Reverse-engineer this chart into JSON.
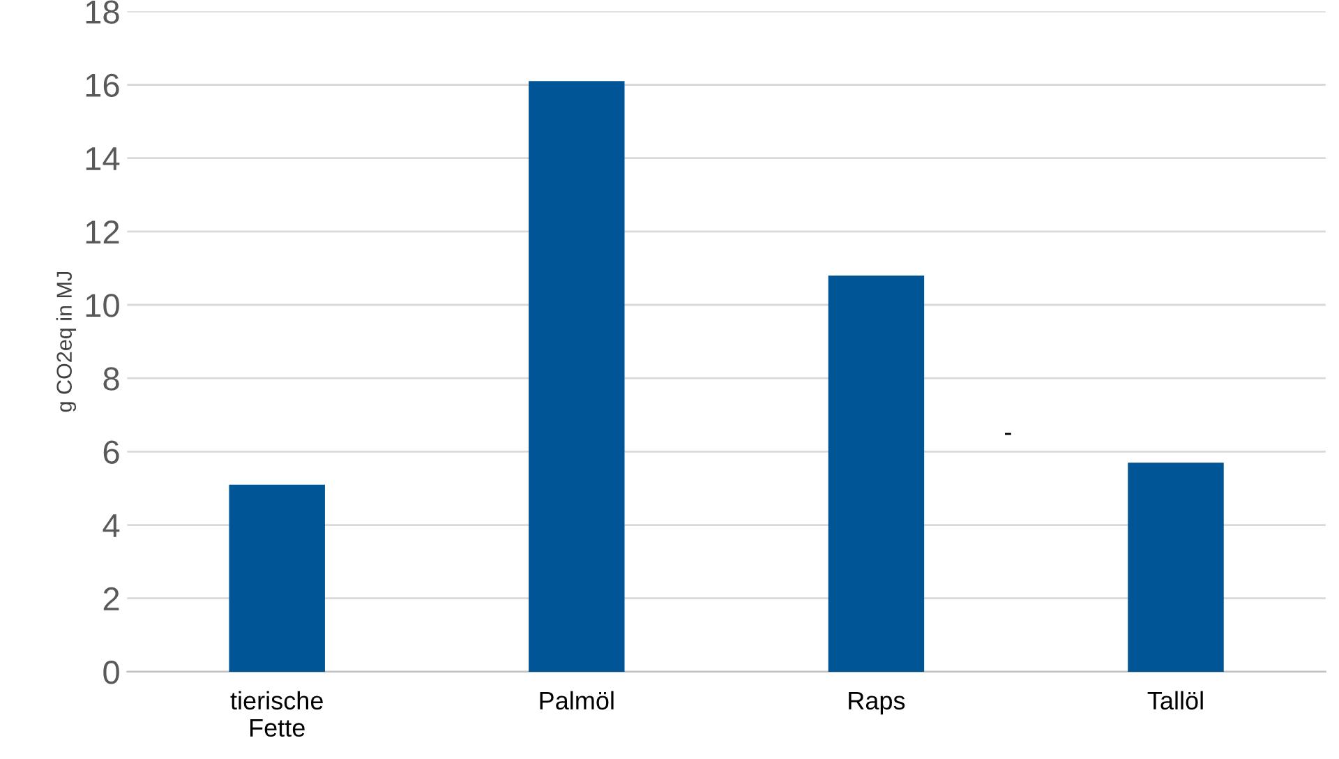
{
  "chart_data": {
    "type": "bar",
    "ylabel": "g CO2eq in MJ",
    "categories": [
      "tierische\nFette",
      "Palmöl",
      "Raps",
      "Tallöl"
    ],
    "values": [
      5.1,
      16.1,
      10.8,
      5.7
    ],
    "color": "#005596",
    "ylim": [
      0,
      18
    ],
    "yticks": [
      0,
      2,
      4,
      6,
      8,
      10,
      12,
      14,
      16,
      18
    ],
    "grid": "y",
    "annotations": [
      "-"
    ]
  }
}
